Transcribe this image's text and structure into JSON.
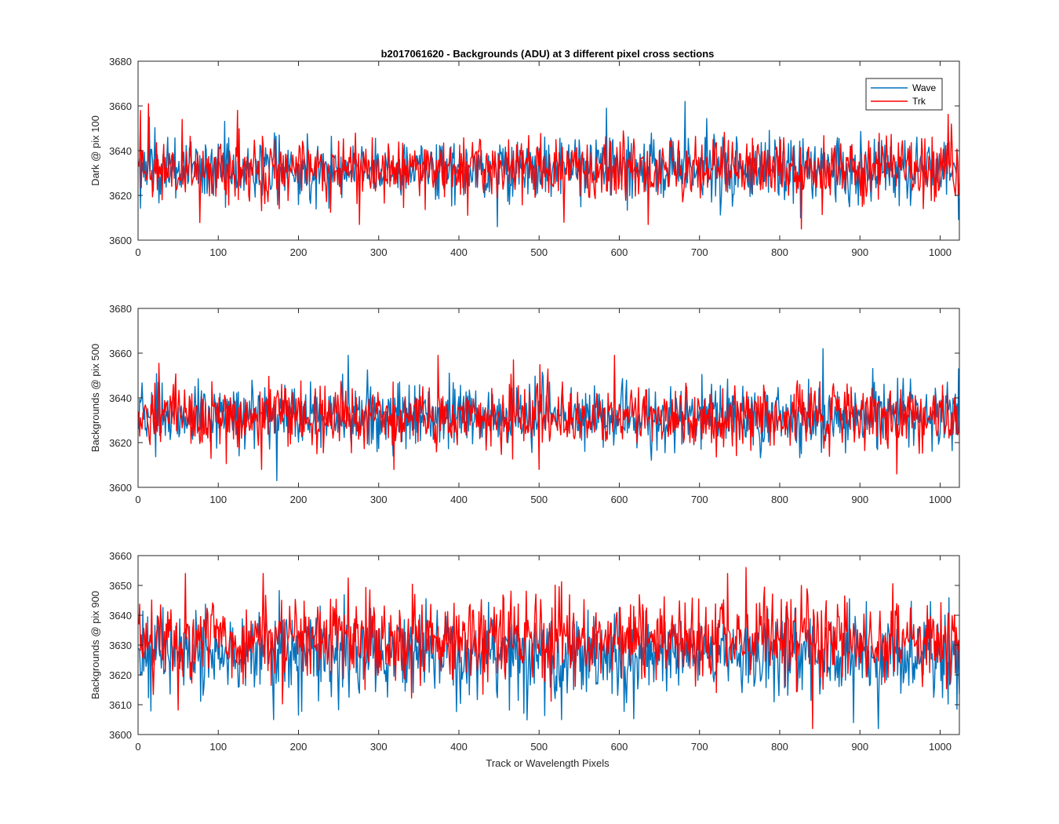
{
  "figure": {
    "title": "b2017061620 - Backgrounds (ADU) at 3 different pixel cross sections",
    "xlabel": "Track or Wavelength Pixels",
    "legend": {
      "position": "top-right",
      "entries": [
        "Wave",
        "Trk"
      ]
    },
    "colors": {
      "Wave": "#0072BD",
      "Trk": "#FF0000",
      "axis": "#262626"
    }
  },
  "chart_data": [
    {
      "type": "line",
      "ylabel": "Dark @ pix 100",
      "xlim": [
        0,
        1024
      ],
      "ylim": [
        3600,
        3680
      ],
      "xticks": [
        0,
        100,
        200,
        300,
        400,
        500,
        600,
        700,
        800,
        900,
        1000
      ],
      "yticks": [
        3600,
        3620,
        3640,
        3660,
        3680
      ],
      "grid": false,
      "series": [
        {
          "name": "Wave",
          "n_points": 1024,
          "mean": 3632,
          "std": 7,
          "min": 3606,
          "max": 3662,
          "notable_points": [
            [
              13,
              3655
            ],
            [
              447,
              3606
            ],
            [
              583,
              3659
            ],
            [
              681,
              3662
            ],
            [
              825,
              3610
            ]
          ]
        },
        {
          "name": "Trk",
          "n_points": 1024,
          "mean": 3632,
          "std": 7,
          "min": 3605,
          "max": 3661,
          "notable_points": [
            [
              2,
              3658
            ],
            [
              12,
              3661
            ],
            [
              123,
              3658
            ],
            [
              275,
              3607
            ],
            [
              530,
              3608
            ],
            [
              635,
              3607
            ],
            [
              826,
              3605
            ]
          ]
        }
      ]
    },
    {
      "type": "line",
      "ylabel": "Backgrounds @ pix 500",
      "xlim": [
        0,
        1024
      ],
      "ylim": [
        3600,
        3680
      ],
      "xticks": [
        0,
        100,
        200,
        300,
        400,
        500,
        600,
        700,
        800,
        900,
        1000
      ],
      "yticks": [
        3600,
        3620,
        3640,
        3660,
        3680
      ],
      "grid": false,
      "series": [
        {
          "name": "Wave",
          "n_points": 1024,
          "mean": 3632,
          "std": 7,
          "min": 3603,
          "max": 3662,
          "notable_points": [
            [
              172,
              3603
            ],
            [
              261,
              3659
            ],
            [
              853,
              3662
            ],
            [
              1022,
              3653
            ]
          ]
        },
        {
          "name": "Trk",
          "n_points": 1024,
          "mean": 3632,
          "std": 7,
          "min": 3606,
          "max": 3659,
          "notable_points": [
            [
              373,
              3659
            ],
            [
              593,
              3659
            ],
            [
              499,
              3608
            ],
            [
              945,
              3606
            ]
          ]
        }
      ]
    },
    {
      "type": "line",
      "ylabel": "Backgrounds @ pix 900",
      "xlim": [
        0,
        1024
      ],
      "ylim": [
        3600,
        3660
      ],
      "xticks": [
        0,
        100,
        200,
        300,
        400,
        500,
        600,
        700,
        800,
        900,
        1000
      ],
      "yticks": [
        3600,
        3610,
        3620,
        3630,
        3640,
        3650,
        3660
      ],
      "grid": false,
      "series": [
        {
          "name": "Wave",
          "n_points": 1024,
          "mean": 3627,
          "std": 7,
          "min": 3602,
          "max": 3652,
          "notable_points": [
            [
              168,
              3605
            ],
            [
              527,
              3605
            ],
            [
              922,
              3602
            ]
          ]
        },
        {
          "name": "Trk",
          "n_points": 1024,
          "mean": 3632,
          "std": 7,
          "min": 3602,
          "max": 3656,
          "notable_points": [
            [
              58,
              3654
            ],
            [
              155,
              3654
            ],
            [
              757,
              3656
            ],
            [
              840,
              3602
            ]
          ]
        }
      ]
    }
  ]
}
